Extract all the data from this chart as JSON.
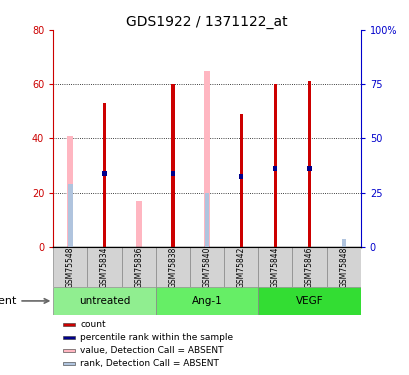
{
  "title": "GDS1922 / 1371122_at",
  "samples": [
    "GSM75548",
    "GSM75834",
    "GSM75836",
    "GSM75838",
    "GSM75840",
    "GSM75842",
    "GSM75844",
    "GSM75846",
    "GSM75848"
  ],
  "groups": [
    {
      "label": "untreated",
      "start": 0,
      "end": 2,
      "color": "#90EE90"
    },
    {
      "label": "Ang-1",
      "start": 3,
      "end": 5,
      "color": "#66EE66"
    },
    {
      "label": "VEGF",
      "start": 6,
      "end": 8,
      "color": "#33DD33"
    }
  ],
  "red_bars": [
    0,
    53,
    0,
    60,
    0,
    49,
    60,
    61,
    0
  ],
  "blue_bars": [
    0,
    27,
    0,
    27,
    0,
    26,
    29,
    29,
    0
  ],
  "pink_bars": [
    41,
    0,
    17,
    0,
    65,
    0,
    0,
    0,
    0
  ],
  "lightblue_bars": [
    23,
    0,
    0,
    0,
    20,
    0,
    0,
    0,
    3
  ],
  "ylim_left": [
    0,
    80
  ],
  "ylim_right": [
    0,
    100
  ],
  "yticks_left": [
    0,
    20,
    40,
    60,
    80
  ],
  "yticks_right": [
    0,
    25,
    50,
    75,
    100
  ],
  "left_tick_color": "#CC0000",
  "right_tick_color": "#0000CC",
  "agent_label": "agent",
  "legend_items": [
    {
      "color": "#CC0000",
      "label": "count"
    },
    {
      "color": "#00008B",
      "label": "percentile rank within the sample"
    },
    {
      "color": "#FFB6C1",
      "label": "value, Detection Call = ABSENT"
    },
    {
      "color": "#B0C4DE",
      "label": "rank, Detection Call = ABSENT"
    }
  ]
}
